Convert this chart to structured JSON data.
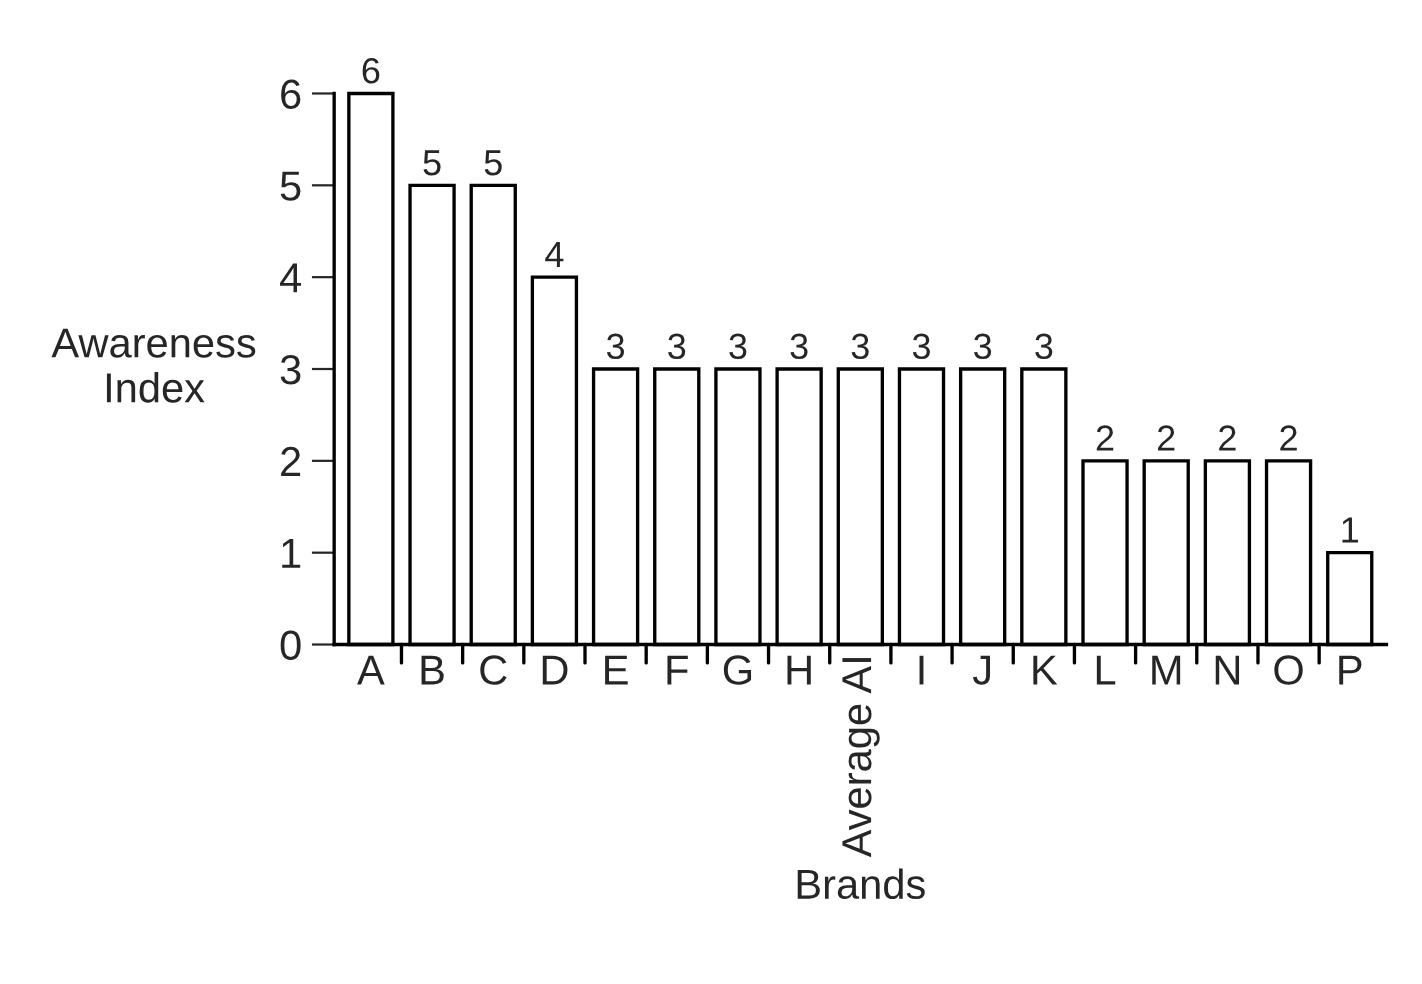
{
  "chart_data": {
    "type": "bar",
    "xlabel": "Brands",
    "ylabel": "Awareness\nIndex",
    "categories": [
      "A",
      "B",
      "C",
      "D",
      "E",
      "F",
      "G",
      "H",
      "Average AI",
      "I",
      "J",
      "K",
      "L",
      "M",
      "N",
      "O",
      "P"
    ],
    "values": [
      6,
      5,
      5,
      4,
      3,
      3,
      3,
      3,
      3,
      3,
      3,
      3,
      2,
      2,
      2,
      2,
      1
    ],
    "color": "#ffffff",
    "ylim": [
      0,
      6
    ],
    "yticks": [
      0,
      1,
      2,
      3,
      4,
      5,
      6
    ],
    "data_labels": true,
    "grid": false,
    "legend": false
  }
}
